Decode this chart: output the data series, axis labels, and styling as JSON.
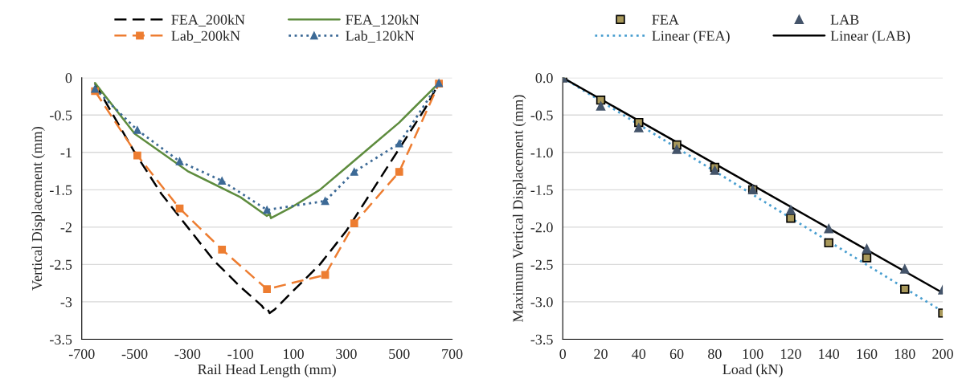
{
  "chart_data": [
    {
      "type": "line",
      "xlabel": "Rail Head Length (mm)",
      "ylabel": "Vertical Displacement (mm)",
      "xlim": [
        -700,
        700
      ],
      "xticks": [
        -700,
        -500,
        -300,
        -100,
        100,
        300,
        500,
        700
      ],
      "ylim": [
        -3.5,
        0
      ],
      "yticks": [
        0,
        -0.5,
        -1,
        -1.5,
        -2,
        -2.5,
        -3,
        -3.5
      ],
      "grid": "y",
      "legend": "top",
      "series": [
        {
          "name": "FEA_200kN",
          "color": "#000000",
          "line_style": "dashed",
          "marker": "none",
          "x": [
            -650,
            -500,
            -400,
            -300,
            -200,
            -100,
            -20,
            -10,
            0,
            10,
            30,
            100,
            200,
            300,
            400,
            500,
            600,
            650
          ],
          "values": [
            -0.08,
            -1.0,
            -1.55,
            -2.0,
            -2.45,
            -2.8,
            -3.05,
            -3.1,
            -3.08,
            -3.15,
            -3.1,
            -2.85,
            -2.5,
            -2.05,
            -1.5,
            -0.95,
            -0.4,
            -0.07
          ]
        },
        {
          "name": "FEA_120kN",
          "color": "#5e8c3e",
          "line_style": "solid",
          "marker": "none",
          "x": [
            -650,
            -500,
            -300,
            -100,
            0,
            10,
            15,
            100,
            200,
            300,
            400,
            500,
            650
          ],
          "values": [
            -0.07,
            -0.75,
            -1.25,
            -1.6,
            -1.85,
            -1.82,
            -1.88,
            -1.72,
            -1.5,
            -1.2,
            -0.9,
            -0.6,
            -0.07
          ]
        },
        {
          "name": "Lab_200kN",
          "color": "#ed7d31",
          "line_style": "dashed",
          "marker": "square",
          "x": [
            -650,
            -490,
            -330,
            -170,
            0,
            220,
            330,
            500,
            650
          ],
          "values": [
            -0.18,
            -1.04,
            -1.75,
            -2.3,
            -2.83,
            -2.64,
            -1.95,
            -1.26,
            -0.08
          ]
        },
        {
          "name": "Lab_120kN",
          "color": "#3d6a96",
          "line_style": "dotted",
          "marker": "triangle",
          "x": [
            -650,
            -490,
            -330,
            -170,
            0,
            220,
            330,
            500,
            650
          ],
          "values": [
            -0.15,
            -0.7,
            -1.12,
            -1.38,
            -1.77,
            -1.65,
            -1.26,
            -0.88,
            -0.07
          ]
        }
      ]
    },
    {
      "type": "scatter",
      "xlabel": "Load (kN)",
      "ylabel": "Maximum Vertical Displacement (mm)",
      "xlim": [
        0,
        200
      ],
      "xticks": [
        0,
        20,
        40,
        60,
        80,
        100,
        120,
        140,
        160,
        180,
        200
      ],
      "ylim": [
        -3.5,
        0
      ],
      "yticks": [
        {
          "value": 0,
          "label": "0.0"
        },
        {
          "value": -0.5,
          "label": "-0.5"
        },
        {
          "value": -1,
          "label": "-1.0"
        },
        {
          "value": -1.5,
          "label": "-1.5"
        },
        {
          "value": -2,
          "label": "-2.0"
        },
        {
          "value": -2.5,
          "label": "-2.5"
        },
        {
          "value": -3,
          "label": "-3.0"
        },
        {
          "value": -3.5,
          "label": "-3.5"
        }
      ],
      "grid": "y",
      "legend": "top",
      "series": [
        {
          "name": "FEA",
          "type": "scatter",
          "color": "#a8985a",
          "marker": "square",
          "x": [
            0,
            20,
            40,
            60,
            80,
            100,
            120,
            140,
            160,
            180,
            200
          ],
          "values": [
            0,
            -0.3,
            -0.6,
            -0.9,
            -1.2,
            -1.5,
            -1.88,
            -2.21,
            -2.41,
            -2.83,
            -3.15
          ]
        },
        {
          "name": "LAB",
          "type": "scatter",
          "color": "#44546a",
          "marker": "triangle",
          "x": [
            0,
            20,
            40,
            60,
            80,
            100,
            120,
            140,
            160,
            180,
            200
          ],
          "values": [
            0,
            -0.38,
            -0.67,
            -0.96,
            -1.24,
            -1.5,
            -1.77,
            -2.02,
            -2.29,
            -2.56,
            -2.84
          ]
        },
        {
          "name": "Linear (FEA)",
          "type": "line",
          "color": "#4a9fd0",
          "line_style": "dotted",
          "x": [
            0,
            200
          ],
          "values": [
            0,
            -3.13
          ]
        },
        {
          "name": "Linear (LAB)",
          "type": "line",
          "color": "#000000",
          "line_style": "solid",
          "x": [
            0,
            200
          ],
          "values": [
            0,
            -2.88
          ]
        }
      ]
    }
  ]
}
